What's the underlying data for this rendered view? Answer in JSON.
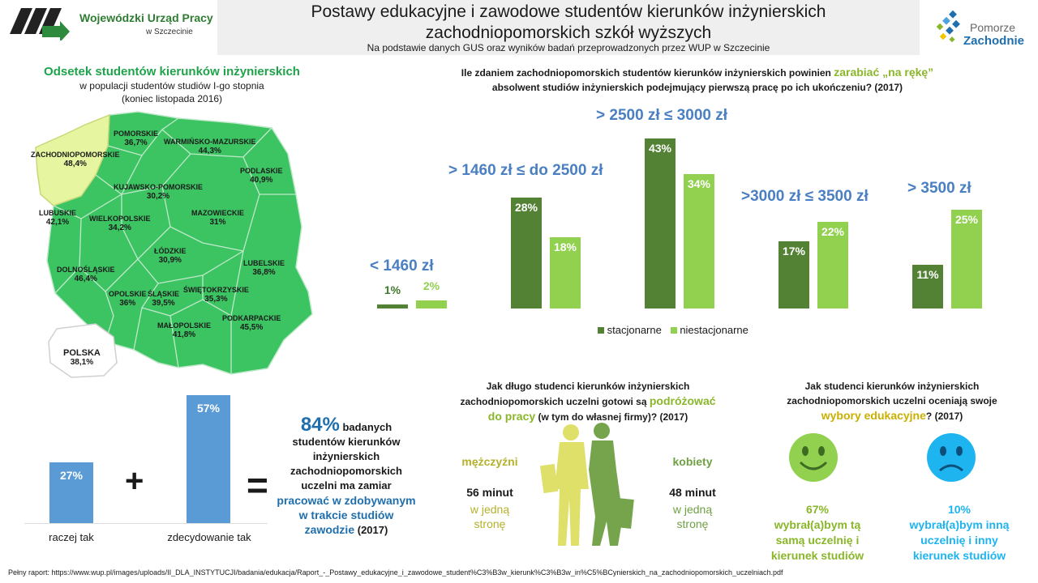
{
  "header": {
    "org_line1": "Wojewódzki Urząd Pracy",
    "org_line2": "w Szczecinie",
    "title_line1": "Postawy edukacyjne i zawodowe studentów kierunków inżynierskich",
    "title_line2": "zachodniopomorskich szkół wyższych",
    "subtitle": "Na podstawie danych GUS oraz wyników badań przeprowadzonych przez WUP w Szczecinie",
    "brand_line1": "Pomorze",
    "brand_line2": "Zachodnie"
  },
  "map": {
    "title": "Odsetek studentów kierunków inżynierskich",
    "sub1": "w populacji studentów studiów I-go stopnia",
    "sub2": "(koniec listopada 2016)",
    "regions": [
      {
        "name": "POMORSKIE",
        "value": "36,7%"
      },
      {
        "name": "WARMIŃSKO-MAZURSKIE",
        "value": "44,3%"
      },
      {
        "name": "ZACHODNIOPOMORSKIE",
        "value": "48,4%"
      },
      {
        "name": "PODLASKIE",
        "value": "40,9%"
      },
      {
        "name": "KUJAWSKO-POMORSKIE",
        "value": "30,2%"
      },
      {
        "name": "LUBUSKIE",
        "value": "42,1%"
      },
      {
        "name": "WIELKOPOLSKIE",
        "value": "34,2%"
      },
      {
        "name": "MAZOWIECKIE",
        "value": "31%"
      },
      {
        "name": "ŁÓDZKIE",
        "value": "30,9%"
      },
      {
        "name": "DOLNOŚLĄSKIE",
        "value": "46,4%"
      },
      {
        "name": "LUBELSKIE",
        "value": "36,8%"
      },
      {
        "name": "OPOLSKIE",
        "value": "36%"
      },
      {
        "name": "ŚLĄSKIE",
        "value": "39,5%"
      },
      {
        "name": "ŚWIĘTOKRZYSKIE",
        "value": "35,3%"
      },
      {
        "name": "MAŁOPOLSKIE",
        "value": "41,8%"
      },
      {
        "name": "PODKARPACKIE",
        "value": "45,5%"
      }
    ],
    "poland_name": "POLSKA",
    "poland_value": "38,1%",
    "colors": {
      "main": "#3cc463",
      "highlight": "#e6f59f"
    }
  },
  "salary": {
    "question_pre": "Ile zdaniem zachodniopomorskich studentów kierunków inżynierskich powinien ",
    "question_accent": "zarabiać „na rękę”",
    "question_line2": "absolwent studiów inżynierskich podejmujący pierwszą pracę po ich ukończeniu? (2017)",
    "legend": [
      "stacjonarne",
      "niestacjonarne"
    ]
  },
  "chart_data": [
    {
      "type": "bar",
      "categories": [
        "< 1460 zł",
        "> 1460 zł ≤ do 2500 zł",
        "> 2500 zł ≤ 3000 zł",
        ">3000 zł ≤ 3500 zł",
        "> 3500 zł"
      ],
      "series": [
        {
          "name": "stacjonarne",
          "values": [
            1,
            28,
            43,
            17,
            11
          ],
          "labels": [
            "1%",
            "28%",
            "43%",
            "17%",
            "11%"
          ],
          "color": "#548235"
        },
        {
          "name": "niestacjonarne",
          "values": [
            2,
            18,
            34,
            22,
            25
          ],
          "labels": [
            "2%",
            "18%",
            "34%",
            "22%",
            "25%"
          ],
          "color": "#92d050"
        }
      ],
      "title": "",
      "ylim": [
        0,
        45
      ],
      "legend": "bottom"
    },
    {
      "type": "bar",
      "categories": [
        "raczej tak",
        "zdecydowanie tak"
      ],
      "values": [
        27,
        57
      ],
      "labels": [
        "27%",
        "57%"
      ],
      "color": "#5b9bd5",
      "ylim": [
        0,
        60
      ]
    }
  ],
  "work": {
    "big": "84%",
    "l1": "badanych",
    "l2": "studentów kierunków",
    "l3": "inżynierskich",
    "l4": "zachodniopomorskich",
    "l5": "uczelni ma zamiar",
    "accent1": "pracować w zdobywanym",
    "accent2": "w trakcie studiów",
    "accent3": "zawodzie",
    "year": " (2017)",
    "plus": "+",
    "equals": "="
  },
  "travel": {
    "q1": "Jak długo studenci kierunków inżynierskich",
    "q2_pre": "zachodniopomorskich  uczelni gotowi są ",
    "q2_accent": "podróżować",
    "q3_accent": "do pracy",
    "q3_post": " (w tym do własnej firmy)? (2017)",
    "men": "mężczyźni",
    "women": "kobiety",
    "men_time": "56 minut",
    "women_time": "48 minut",
    "way1": "w jedną",
    "way2": "stronę"
  },
  "choice": {
    "q1": "Jak studenci kierunków inżynierskich",
    "q2": "zachodniopomorskich  uczelni oceniają swoje",
    "q3_accent": "wybory edukacyjne",
    "q3_post": "? (2017)",
    "happy_pct": "67%",
    "happy_l1": "wybrał(a)bym tą",
    "happy_l2": "samą uczelnię i",
    "happy_l3": "kierunek studiów",
    "sad_pct": "10%",
    "sad_l1": "wybrał(a)bym inną",
    "sad_l2": "uczelnię i inny",
    "sad_l3": "kierunek studiów"
  },
  "footer": "Pełny raport: https://www.wup.pl/images/uploads/II_DLA_INSTYTUCJI/badania/edukacja/Raport_-_Postawy_edukacyjne_i_zawodowe_student%C3%B3w_kierunk%C3%B3w_in%C5%BCynierskich_na_zachodniopomorskich_uczelniach.pdf"
}
